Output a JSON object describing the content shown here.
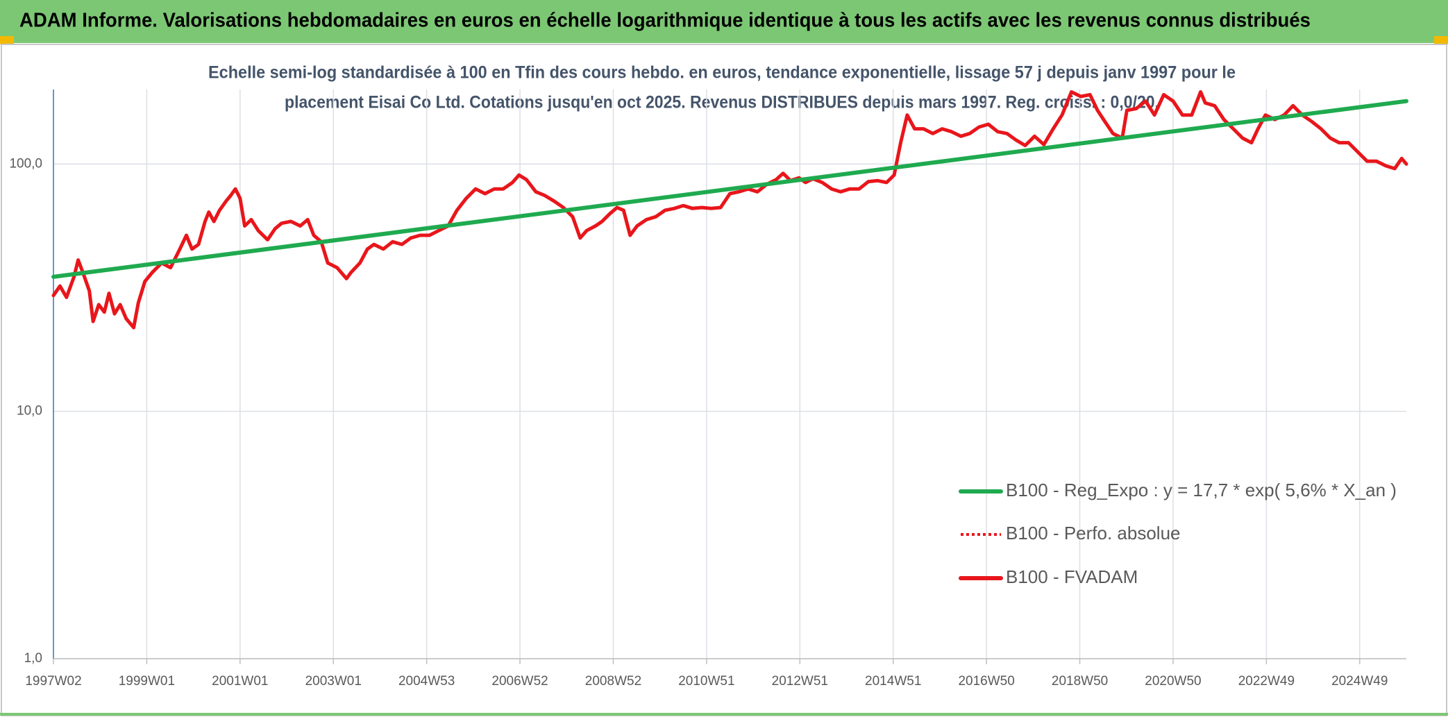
{
  "chart_data": {
    "type": "line",
    "header": "ADAM Informe. Valorisations hebdomadaires en euros en échelle logarithmique identique à tous les actifs avec les revenus connus distribués",
    "subtitle_lines": [
      "Echelle semi-log standardisée à 100 en Tfin des cours hebdo. en euros, tendance exponentielle, lissage 57 j depuis janv 1997 pour le",
      "placement Eisai Co Ltd. Cotations jusqu'en oct 2025. Revenus DISTRIBUES depuis mars 1997. Reg. croiss. : 0,0/20."
    ],
    "log_scale": true,
    "grid": true,
    "legend": "lower right",
    "xlim": [
      1997,
      2026
    ],
    "xticks": [
      {
        "value": 1997,
        "label": "1997W02"
      },
      {
        "value": 1999,
        "label": "1999W01"
      },
      {
        "value": 2001,
        "label": "2001W01"
      },
      {
        "value": 2003,
        "label": "2003W01"
      },
      {
        "value": 2005,
        "label": "2004W53"
      },
      {
        "value": 2007,
        "label": "2006W52"
      },
      {
        "value": 2009,
        "label": "2008W52"
      },
      {
        "value": 2011,
        "label": "2010W51"
      },
      {
        "value": 2013,
        "label": "2012W51"
      },
      {
        "value": 2015,
        "label": "2014W51"
      },
      {
        "value": 2017,
        "label": "2016W50"
      },
      {
        "value": 2019,
        "label": "2018W50"
      },
      {
        "value": 2021,
        "label": "2020W50"
      },
      {
        "value": 2023,
        "label": "2022W49"
      },
      {
        "value": 2025,
        "label": "2024W49"
      }
    ],
    "ylim": [
      1,
      200
    ],
    "yticks": [
      {
        "value": 1,
        "label": "1,0"
      },
      {
        "value": 10,
        "label": "10,0"
      },
      {
        "value": 100,
        "label": "100,0"
      }
    ],
    "series": [
      {
        "name": "B100 - Reg_Expo : y = 17,7 * exp( 5,6% *  X_an )",
        "color": "#1faa4f",
        "width": 6,
        "dashed": false,
        "x": [
          1997,
          2026
        ],
        "values": [
          35,
          179.6
        ]
      },
      {
        "name": "B100 - Perfo. absolue",
        "color": "#e8161b",
        "width": 4,
        "dashed": true,
        "x": [],
        "values": []
      },
      {
        "name": "B100 - FVADAM",
        "color": "#e8161b",
        "width": 5,
        "dashed": false,
        "x": [
          1997.0,
          1997.14,
          1997.28,
          1997.44,
          1997.53,
          1997.63,
          1997.77,
          1997.85,
          1997.97,
          1998.09,
          1998.19,
          1998.31,
          1998.43,
          1998.56,
          1998.72,
          1998.82,
          1998.96,
          1999.12,
          1999.32,
          1999.51,
          1999.71,
          1999.85,
          1999.97,
          2000.11,
          2000.25,
          2000.33,
          2000.44,
          2000.56,
          2000.7,
          2000.8,
          2000.9,
          2001.0,
          2001.1,
          2001.24,
          2001.39,
          2001.59,
          2001.75,
          2001.89,
          2002.09,
          2002.29,
          2002.45,
          2002.58,
          2002.74,
          2002.88,
          2003.08,
          2003.28,
          2003.38,
          2003.57,
          2003.73,
          2003.87,
          2004.07,
          2004.27,
          2004.47,
          2004.66,
          2004.86,
          2005.06,
          2005.26,
          2005.46,
          2005.65,
          2005.85,
          2006.05,
          2006.25,
          2006.45,
          2006.64,
          2006.84,
          2006.98,
          2007.14,
          2007.34,
          2007.53,
          2007.73,
          2007.93,
          2008.13,
          2008.29,
          2008.43,
          2008.62,
          2008.76,
          2008.92,
          2009.08,
          2009.22,
          2009.36,
          2009.51,
          2009.71,
          2009.91,
          2010.11,
          2010.31,
          2010.5,
          2010.7,
          2010.9,
          2011.1,
          2011.3,
          2011.5,
          2011.69,
          2011.89,
          2012.09,
          2012.29,
          2012.49,
          2012.64,
          2012.8,
          2012.98,
          2013.12,
          2013.28,
          2013.48,
          2013.68,
          2013.87,
          2014.07,
          2014.27,
          2014.47,
          2014.67,
          2014.86,
          2015.02,
          2015.16,
          2015.3,
          2015.46,
          2015.65,
          2015.85,
          2016.05,
          2016.25,
          2016.45,
          2016.64,
          2016.84,
          2017.04,
          2017.24,
          2017.44,
          2017.63,
          2017.83,
          2018.03,
          2018.23,
          2018.43,
          2018.62,
          2018.82,
          2019.02,
          2019.22,
          2019.38,
          2019.51,
          2019.71,
          2019.91,
          2020.01,
          2020.21,
          2020.41,
          2020.6,
          2020.8,
          2021.0,
          2021.2,
          2021.4,
          2021.59,
          2021.69,
          2021.89,
          2022.09,
          2022.29,
          2022.49,
          2022.68,
          2022.82,
          2022.98,
          2023.18,
          2023.38,
          2023.57,
          2023.77,
          2023.97,
          2024.17,
          2024.37,
          2024.56,
          2024.76,
          2024.96,
          2025.16,
          2025.36,
          2025.56,
          2025.75,
          2025.9,
          2026.0
        ],
        "values": [
          29.4,
          32.1,
          28.9,
          35.0,
          40.9,
          36.5,
          30.7,
          23.1,
          27.0,
          25.2,
          30.0,
          24.8,
          27.0,
          23.7,
          21.8,
          27.5,
          33.5,
          36.5,
          39.8,
          38.1,
          45.3,
          51.5,
          45.3,
          47.3,
          58.6,
          63.9,
          58.6,
          65.0,
          70.8,
          74.6,
          79.3,
          72.7,
          56.2,
          59.6,
          53.8,
          49.4,
          54.7,
          57.6,
          58.6,
          56.2,
          59.6,
          51.5,
          48.5,
          39.8,
          38.1,
          34.4,
          36.5,
          39.8,
          45.3,
          47.3,
          45.3,
          48.5,
          47.3,
          50.2,
          51.5,
          51.5,
          53.8,
          56.2,
          65.0,
          72.7,
          79.3,
          75.9,
          79.3,
          79.3,
          84.2,
          90.2,
          86.4,
          77.2,
          74.6,
          70.8,
          66.7,
          61.2,
          50.2,
          53.8,
          56.2,
          58.6,
          62.8,
          66.7,
          65.0,
          51.5,
          56.2,
          59.6,
          61.2,
          65.0,
          66.1,
          67.9,
          66.1,
          66.7,
          66.1,
          66.7,
          75.9,
          77.2,
          79.3,
          77.2,
          82.8,
          86.4,
          91.7,
          85.6,
          87.9,
          84.2,
          87.2,
          84.2,
          79.3,
          77.2,
          79.3,
          79.3,
          84.9,
          85.6,
          84.2,
          90.2,
          121.9,
          157.8,
          138.7,
          138.7,
          132.8,
          138.7,
          135.1,
          129.5,
          132.8,
          141.1,
          144.8,
          135.1,
          132.8,
          125.1,
          118.8,
          129.5,
          119.8,
          138.7,
          157.8,
          195.7,
          187.5,
          190.7,
          164.8,
          151.2,
          132.8,
          127.2,
          164.8,
          167.6,
          179.6,
          157.8,
          190.7,
          179.6,
          157.8,
          157.8,
          195.7,
          176.5,
          172.0,
          151.2,
          138.7,
          127.2,
          121.9,
          138.7,
          157.8,
          151.2,
          157.8,
          172.0,
          157.8,
          148.6,
          138.7,
          127.2,
          121.9,
          121.9,
          111.8,
          102.6,
          102.6,
          98.3,
          95.8,
          105.3,
          100
        ]
      }
    ]
  }
}
